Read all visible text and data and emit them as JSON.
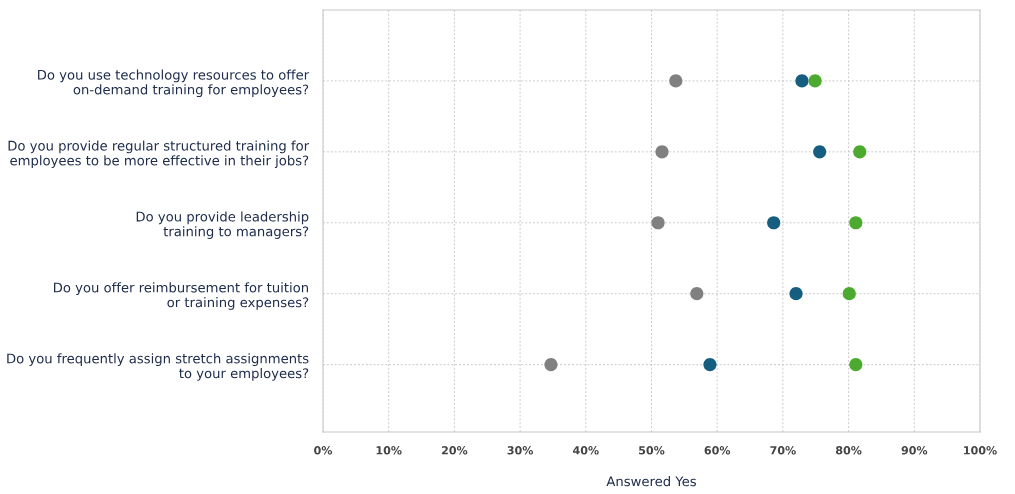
{
  "chart_data": {
    "type": "scatter",
    "orientation": "horizontal",
    "xlabel": "Answered Yes",
    "categories": [
      "Do you use technology resources to offer\non-demand training for employees?",
      "Do you provide regular structured training for\nemployees to be more effective in their jobs?",
      "Do you provide leadership\ntraining to managers?",
      "Do you offer reimbursement for tuition\nor training expenses?",
      "Do you frequently assign stretch assignments\nto your employees?"
    ],
    "series": [
      {
        "color": "#808080",
        "values": [
          53.7,
          51.6,
          51.0,
          56.9,
          34.7
        ]
      },
      {
        "color": "#165e80",
        "values": [
          72.9,
          75.6,
          68.6,
          72.0,
          58.9
        ]
      },
      {
        "color": "#4caa30",
        "values": [
          74.9,
          81.7,
          81.1,
          80.1,
          81.1
        ]
      }
    ],
    "xlim": [
      0,
      100
    ],
    "xticks": [
      {
        "value": 0,
        "label": "0%"
      },
      {
        "value": 10,
        "label": "10%"
      },
      {
        "value": 20,
        "label": "20%"
      },
      {
        "value": 30,
        "label": "30%"
      },
      {
        "value": 40,
        "label": "40%"
      },
      {
        "value": 50,
        "label": "50%"
      },
      {
        "value": 60,
        "label": "60%"
      },
      {
        "value": 70,
        "label": "70%"
      },
      {
        "value": 80,
        "label": "80%"
      },
      {
        "value": 90,
        "label": "90%"
      },
      {
        "value": 100,
        "label": "100%"
      }
    ],
    "grid": true,
    "marker": "circle"
  }
}
